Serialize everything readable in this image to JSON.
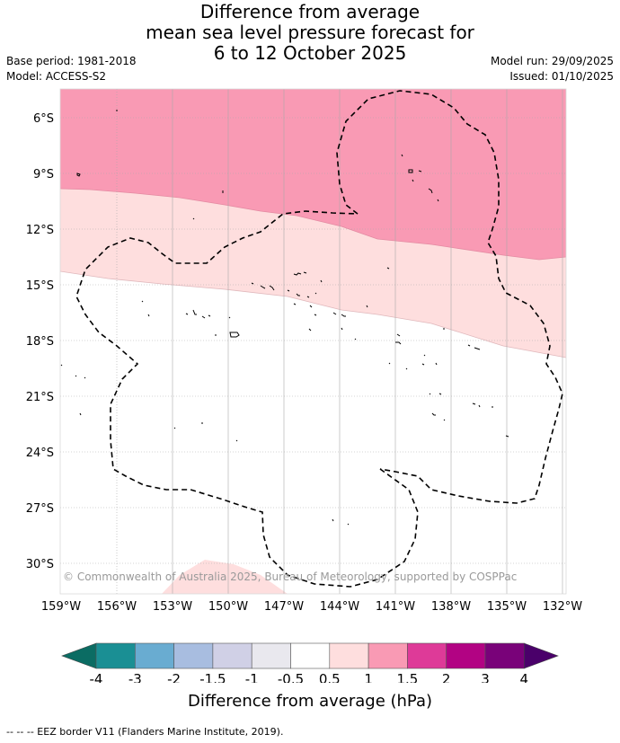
{
  "title": {
    "line1": "Difference from average",
    "line2": "mean sea level pressure forecast for",
    "line3": "6 to 12 October 2025"
  },
  "meta": {
    "base_period": "Base period: 1981-2018",
    "model": "Model: ACCESS-S2",
    "model_run": "Model run: 29/09/2025",
    "issued": "Issued: 01/10/2025"
  },
  "map": {
    "copyright": "© Commonwealth of Australia 2025, Bureau of Meteorology, supported by COSPPac",
    "lat_labels": [
      "6°S",
      "9°S",
      "12°S",
      "15°S",
      "18°S",
      "21°S",
      "24°S",
      "27°S",
      "30°S"
    ],
    "lon_labels": [
      "159°W",
      "156°W",
      "153°W",
      "150°W",
      "147°W",
      "144°W",
      "141°W",
      "138°W",
      "135°W",
      "132°W"
    ],
    "fill_colors": {
      "band_1_to_1_5": "#f99ab4",
      "band_0_5_to_1": "#fedede",
      "band_neutral": "#ffffff"
    }
  },
  "colorbar": {
    "title": "Difference from average (hPa)",
    "tick_labels": [
      "-4",
      "-3",
      "-2",
      "-1.5",
      "-1",
      "-0.5",
      "0.5",
      "1",
      "1.5",
      "2",
      "3",
      "4"
    ],
    "colors": [
      "#1a8f94",
      "#69acd1",
      "#a8bde0",
      "#d0d0e6",
      "#e9e8ee",
      "#ffffff",
      "#fedede",
      "#f99ab4",
      "#de3a98",
      "#b20383",
      "#790279"
    ],
    "extend_low": "#0b6c63",
    "extend_high": "#4a006a"
  },
  "footer": "-- -- -- EEZ border V11 (Flanders Marine Institute, 2019)."
}
